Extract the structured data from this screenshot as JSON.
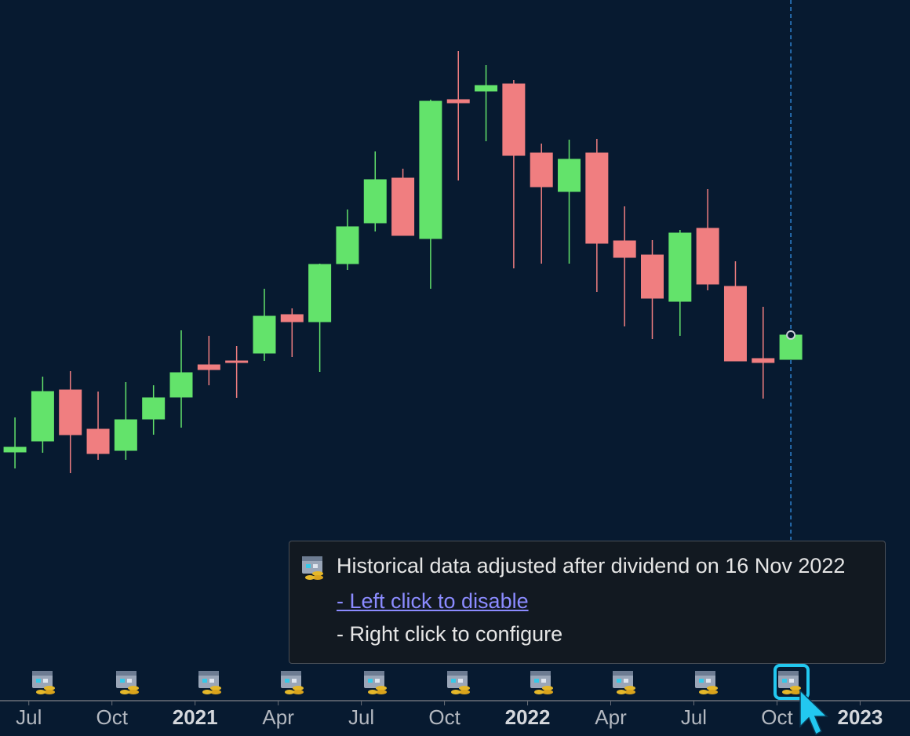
{
  "chart_data": {
    "type": "candlestick",
    "tooltip": {
      "title": "Historical data adjusted after dividend on 16 Nov 2022",
      "link": "- Left click to disable",
      "note": "- Right click to configure"
    },
    "x": [
      0,
      1,
      2,
      3,
      4,
      5,
      6,
      7,
      8,
      9,
      10,
      11,
      12,
      13,
      14,
      15,
      16,
      17,
      18,
      19,
      20,
      21,
      22,
      23,
      24,
      25,
      26,
      27,
      28
    ],
    "open": [
      124,
      138,
      203,
      153,
      126,
      166,
      194,
      235,
      240,
      250,
      299,
      290,
      364,
      416,
      473,
      396,
      573,
      584,
      593,
      505,
      456,
      505,
      393,
      375,
      316,
      409,
      335,
      243,
      242
    ],
    "high": [
      168,
      220,
      227,
      201,
      213,
      209,
      279,
      272,
      259,
      332,
      307,
      364,
      433,
      507,
      485,
      573,
      635,
      617,
      598,
      517,
      522,
      523,
      437,
      394,
      407,
      459,
      367,
      309,
      272
    ],
    "low": [
      103,
      123,
      97,
      114,
      114,
      146,
      155,
      209,
      193,
      240,
      245,
      226,
      356,
      405,
      400,
      332,
      470,
      520,
      358,
      364,
      364,
      328,
      284,
      268,
      272,
      330,
      240,
      192,
      242
    ],
    "close": [
      130,
      201,
      146,
      122,
      165,
      193,
      225,
      229,
      238,
      297,
      290,
      363,
      411,
      471,
      400,
      571,
      569,
      591,
      502,
      462,
      497,
      390,
      372,
      320,
      403,
      338,
      240,
      238,
      273
    ],
    "up_color": "#63e36b",
    "down_color": "#f07e80",
    "xlim": [
      -0.54,
      32.3
    ],
    "ylim": [
      0,
      700
    ],
    "xticks": [
      {
        "value": 0.5,
        "label": "Jul"
      },
      {
        "value": 3.5,
        "label": "Oct"
      },
      6.5,
      {
        "value": 9.5,
        "label": "Apr"
      },
      {
        "value": 12.5,
        "label": "Jul"
      },
      {
        "value": 15.5,
        "label": "Oct"
      },
      18.5,
      {
        "value": 21.5,
        "label": "Apr"
      },
      {
        "value": 24.5,
        "label": "Jul"
      },
      {
        "value": 27.5,
        "label": "Oct"
      },
      30.5
    ],
    "xtick_labels_numeric": [
      "2021",
      "2022",
      "2023"
    ],
    "crosshair_x": 28
  }
}
